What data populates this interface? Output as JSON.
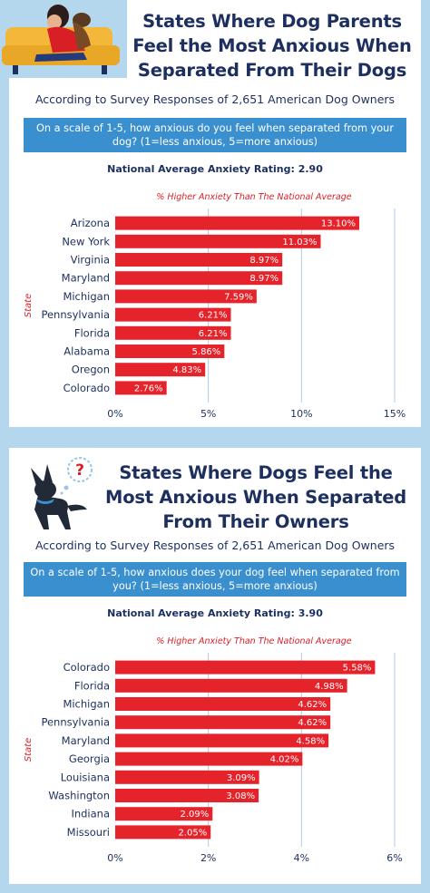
{
  "colors": {
    "background": "#b5d7ee",
    "navy": "#1d2f5f",
    "question_bg": "#3a8fcf",
    "bar": "#e4232b",
    "grid": "#a8cdee"
  },
  "panel1": {
    "title": "States Where Dog Parents Feel the Most Anxious When Separated From Their Dogs",
    "subtitle": "According to Survey Responses of 2,651 American Dog Owners",
    "question": "On a scale of 1-5, how anxious do you feel when separated from your dog? (1=less anxious, 5=more anxious)",
    "national_average": "National Average Anxiety Rating: 2.90",
    "illustration": "person-on-couch-with-dog"
  },
  "panel2": {
    "title": "States Where Dogs Feel the Most Anxious When Separated From Their Owners",
    "subtitle": "According to Survey Responses of 2,651 American Dog Owners",
    "question": "On a scale of 1-5, how anxious does your dog feel when separated from you? (1=less anxious, 5=more anxious)",
    "national_average": "National Average Anxiety Rating: 3.90",
    "illustration": "dog-with-question-mark"
  },
  "chart_data": [
    {
      "type": "bar",
      "orientation": "horizontal",
      "title": "",
      "xlabel": "% Higher Anxiety Than The National Average",
      "ylabel": "State",
      "categories": [
        "Arizona",
        "New York",
        "Virginia",
        "Maryland",
        "Michigan",
        "Pennsylvania",
        "Florida",
        "Alabama",
        "Oregon",
        "Colorado"
      ],
      "values": [
        13.1,
        11.03,
        8.97,
        8.97,
        7.59,
        6.21,
        6.21,
        5.86,
        4.83,
        2.76
      ],
      "value_labels": [
        "13.10%",
        "11.03%",
        "8.97%",
        "8.97%",
        "7.59%",
        "6.21%",
        "6.21%",
        "5.86%",
        "4.83%",
        "2.76%"
      ],
      "xlim": [
        0,
        15
      ],
      "ticks": [
        0,
        5,
        10,
        15
      ],
      "tick_labels": [
        "0%",
        "5%",
        "10%",
        "15%"
      ],
      "grid": true
    },
    {
      "type": "bar",
      "orientation": "horizontal",
      "title": "",
      "xlabel": "% Higher Anxiety Than The National Average",
      "ylabel": "State",
      "categories": [
        "Colorado",
        "Florida",
        "Michigan",
        "Pennsylvania",
        "Maryland",
        "Georgia",
        "Louisiana",
        "Washington",
        "Indiana",
        "Missouri"
      ],
      "values": [
        5.58,
        4.98,
        4.62,
        4.62,
        4.58,
        4.02,
        3.09,
        3.08,
        2.09,
        2.05
      ],
      "value_labels": [
        "5.58%",
        "4.98%",
        "4.62%",
        "4.62%",
        "4.58%",
        "4.02%",
        "3.09%",
        "3.08%",
        "2.09%",
        "2.05%"
      ],
      "xlim": [
        0,
        6
      ],
      "ticks": [
        0,
        2,
        4,
        6
      ],
      "tick_labels": [
        "0%",
        "2%",
        "4%",
        "6%"
      ],
      "grid": true
    }
  ]
}
